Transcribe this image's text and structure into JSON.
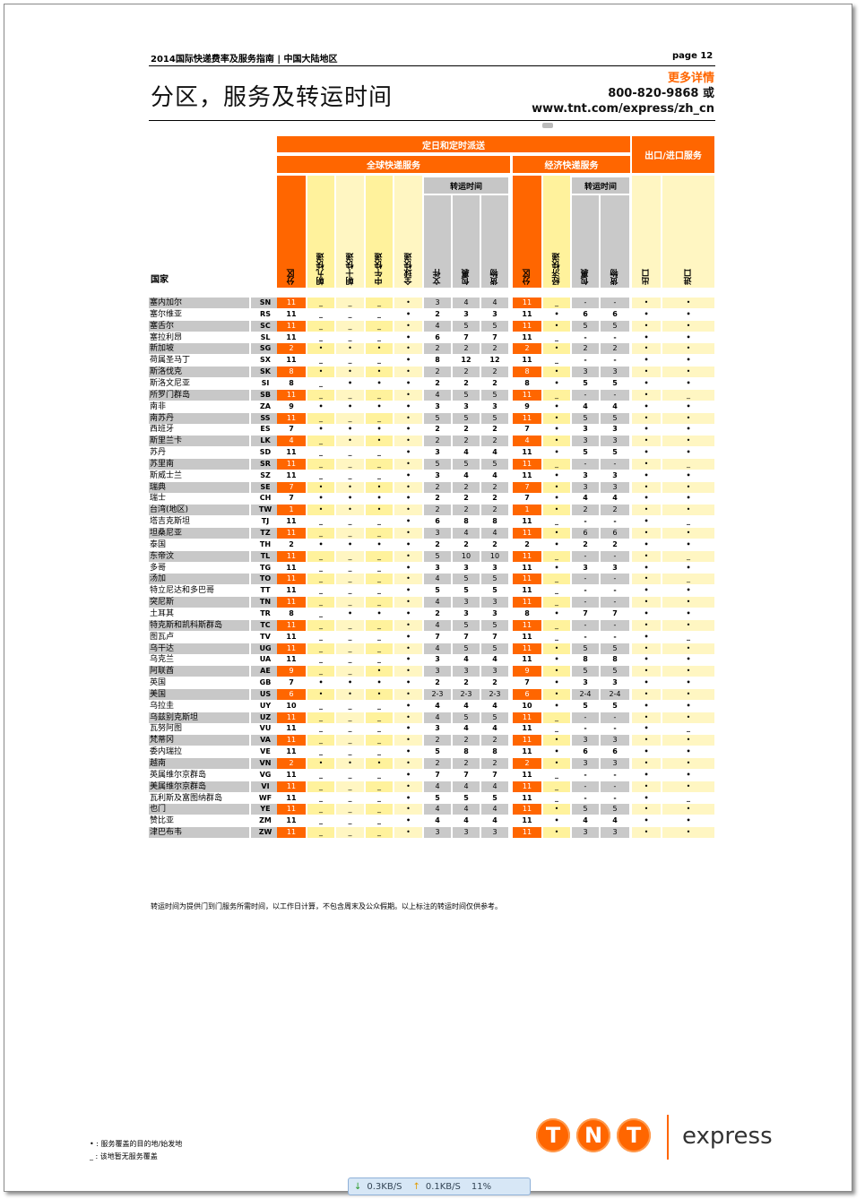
{
  "header": {
    "doc_title": "2014国际快递费率及服务指南 | 中国大陆地区",
    "page": "page 12",
    "title": "分区，服务及转运时间",
    "more_info": "更多详情",
    "phone": "800-820-9868 或",
    "url": "www.tnt.com/express/zh_cn"
  },
  "table": {
    "group_top": "定日和定时派送",
    "group_global": "全球快递服务",
    "group_economy": "经济快递服务",
    "group_export": "出口/进口服务",
    "transit_label": "转运时间",
    "country_header": "国家",
    "columns": [
      "分区",
      "朝九快递",
      "朝十快递",
      "中午快递",
      "全球快递",
      "文件",
      "包裹",
      "货物",
      "分区",
      "经济快递",
      "包裹",
      "货物",
      "出口",
      "进口"
    ],
    "rows": [
      {
        "name": "塞内加尔",
        "code": "SN",
        "v": [
          "11",
          "_",
          "_",
          "_",
          "•",
          "3",
          "4",
          "4",
          "11",
          "_",
          "-",
          "-",
          "•",
          "•"
        ]
      },
      {
        "name": "塞尔维亚",
        "code": "RS",
        "v": [
          "11",
          "_",
          "_",
          "_",
          "•",
          "2",
          "3",
          "3",
          "11",
          "•",
          "6",
          "6",
          "•",
          "•"
        ]
      },
      {
        "name": "塞舌尔",
        "code": "SC",
        "v": [
          "11",
          "_",
          "_",
          "_",
          "•",
          "4",
          "5",
          "5",
          "11",
          "•",
          "5",
          "5",
          "•",
          "•"
        ]
      },
      {
        "name": "塞拉利昂",
        "code": "SL",
        "v": [
          "11",
          "_",
          "_",
          "_",
          "•",
          "6",
          "7",
          "7",
          "11",
          "_",
          "-",
          "-",
          "•",
          "•"
        ]
      },
      {
        "name": "新加坡",
        "code": "SG",
        "v": [
          "2",
          "•",
          "•",
          "•",
          "•",
          "2",
          "2",
          "2",
          "2",
          "•",
          "2",
          "2",
          "•",
          "•"
        ]
      },
      {
        "name": "荷属圣马丁",
        "code": "SX",
        "v": [
          "11",
          "_",
          "_",
          "_",
          "•",
          "8",
          "12",
          "12",
          "11",
          "_",
          "-",
          "-",
          "•",
          "•"
        ]
      },
      {
        "name": "斯洛伐克",
        "code": "SK",
        "v": [
          "8",
          "•",
          "•",
          "•",
          "•",
          "2",
          "2",
          "2",
          "8",
          "•",
          "3",
          "3",
          "•",
          "•"
        ]
      },
      {
        "name": "斯洛文尼亚",
        "code": "SI",
        "v": [
          "8",
          "_",
          "•",
          "•",
          "•",
          "2",
          "2",
          "2",
          "8",
          "•",
          "5",
          "5",
          "•",
          "•"
        ]
      },
      {
        "name": "所罗门群岛",
        "code": "SB",
        "v": [
          "11",
          "_",
          "_",
          "_",
          "•",
          "4",
          "5",
          "5",
          "11",
          "_",
          "-",
          "-",
          "•",
          "_"
        ]
      },
      {
        "name": "南非",
        "code": "ZA",
        "v": [
          "9",
          "•",
          "•",
          "•",
          "•",
          "3",
          "3",
          "3",
          "9",
          "•",
          "4",
          "4",
          "•",
          "•"
        ]
      },
      {
        "name": "南苏丹",
        "code": "SS",
        "v": [
          "11",
          "_",
          "_",
          "_",
          "•",
          "5",
          "5",
          "5",
          "11",
          "•",
          "5",
          "5",
          "•",
          "•"
        ]
      },
      {
        "name": "西班牙",
        "code": "ES",
        "v": [
          "7",
          "•",
          "•",
          "•",
          "•",
          "2",
          "2",
          "2",
          "7",
          "•",
          "3",
          "3",
          "•",
          "•"
        ]
      },
      {
        "name": "斯里兰卡",
        "code": "LK",
        "v": [
          "4",
          "_",
          "•",
          "•",
          "•",
          "2",
          "2",
          "2",
          "4",
          "•",
          "3",
          "3",
          "•",
          "•"
        ]
      },
      {
        "name": "苏丹",
        "code": "SD",
        "v": [
          "11",
          "_",
          "_",
          "_",
          "•",
          "3",
          "4",
          "4",
          "11",
          "•",
          "5",
          "5",
          "•",
          "•"
        ]
      },
      {
        "name": "苏里南",
        "code": "SR",
        "v": [
          "11",
          "_",
          "_",
          "_",
          "•",
          "5",
          "5",
          "5",
          "11",
          "_",
          "-",
          "-",
          "•",
          "_"
        ]
      },
      {
        "name": "斯威士兰",
        "code": "SZ",
        "v": [
          "11",
          "_",
          "_",
          "_",
          "•",
          "3",
          "4",
          "4",
          "11",
          "•",
          "3",
          "3",
          "•",
          "•"
        ]
      },
      {
        "name": "瑞典",
        "code": "SE",
        "v": [
          "7",
          "•",
          "•",
          "•",
          "•",
          "2",
          "2",
          "2",
          "7",
          "•",
          "3",
          "3",
          "•",
          "•"
        ]
      },
      {
        "name": "瑞士",
        "code": "CH",
        "v": [
          "7",
          "•",
          "•",
          "•",
          "•",
          "2",
          "2",
          "2",
          "7",
          "•",
          "4",
          "4",
          "•",
          "•"
        ]
      },
      {
        "name": "台湾(地区)",
        "code": "TW",
        "v": [
          "1",
          "•",
          "•",
          "•",
          "•",
          "2",
          "2",
          "2",
          "1",
          "•",
          "2",
          "2",
          "•",
          "•"
        ]
      },
      {
        "name": "塔吉克斯坦",
        "code": "TJ",
        "v": [
          "11",
          "_",
          "_",
          "_",
          "•",
          "6",
          "8",
          "8",
          "11",
          "_",
          "-",
          "-",
          "•",
          "_"
        ]
      },
      {
        "name": "坦桑尼亚",
        "code": "TZ",
        "v": [
          "11",
          "_",
          "_",
          "_",
          "•",
          "3",
          "4",
          "4",
          "11",
          "•",
          "6",
          "6",
          "•",
          "•"
        ]
      },
      {
        "name": "泰国",
        "code": "TH",
        "v": [
          "2",
          "•",
          "•",
          "•",
          "•",
          "2",
          "2",
          "2",
          "2",
          "•",
          "2",
          "2",
          "•",
          "•"
        ]
      },
      {
        "name": "东帝汶",
        "code": "TL",
        "v": [
          "11",
          "_",
          "_",
          "_",
          "•",
          "5",
          "10",
          "10",
          "11",
          "_",
          "-",
          "-",
          "•",
          "_"
        ]
      },
      {
        "name": "多哥",
        "code": "TG",
        "v": [
          "11",
          "_",
          "_",
          "_",
          "•",
          "3",
          "3",
          "3",
          "11",
          "•",
          "3",
          "3",
          "•",
          "•"
        ]
      },
      {
        "name": "汤加",
        "code": "TO",
        "v": [
          "11",
          "_",
          "_",
          "_",
          "•",
          "4",
          "5",
          "5",
          "11",
          "_",
          "-",
          "-",
          "•",
          "_"
        ]
      },
      {
        "name": "特立尼达和多巴哥",
        "code": "TT",
        "v": [
          "11",
          "_",
          "_",
          "_",
          "•",
          "5",
          "5",
          "5",
          "11",
          "_",
          "-",
          "-",
          "•",
          "•"
        ]
      },
      {
        "name": "突尼斯",
        "code": "TN",
        "v": [
          "11",
          "_",
          "_",
          "_",
          "•",
          "4",
          "3",
          "3",
          "11",
          "_",
          "-",
          "-",
          "•",
          "•"
        ]
      },
      {
        "name": "土耳其",
        "code": "TR",
        "v": [
          "8",
          "_",
          "•",
          "•",
          "•",
          "2",
          "3",
          "3",
          "8",
          "•",
          "7",
          "7",
          "•",
          "•"
        ]
      },
      {
        "name": "特克斯和凯科斯群岛",
        "code": "TC",
        "v": [
          "11",
          "_",
          "_",
          "_",
          "•",
          "4",
          "5",
          "5",
          "11",
          "_",
          "-",
          "-",
          "•",
          "•"
        ]
      },
      {
        "name": "图瓦卢",
        "code": "TV",
        "v": [
          "11",
          "_",
          "_",
          "_",
          "•",
          "7",
          "7",
          "7",
          "11",
          "_",
          "-",
          "-",
          "•",
          "_"
        ]
      },
      {
        "name": "乌干达",
        "code": "UG",
        "v": [
          "11",
          "_",
          "_",
          "_",
          "•",
          "4",
          "5",
          "5",
          "11",
          "•",
          "5",
          "5",
          "•",
          "•"
        ]
      },
      {
        "name": "乌克兰",
        "code": "UA",
        "v": [
          "11",
          "_",
          "_",
          "_",
          "•",
          "3",
          "4",
          "4",
          "11",
          "•",
          "8",
          "8",
          "•",
          "•"
        ]
      },
      {
        "name": "阿联酋",
        "code": "AE",
        "v": [
          "9",
          "_",
          "_",
          "•",
          "•",
          "3",
          "3",
          "3",
          "9",
          "•",
          "5",
          "5",
          "•",
          "•"
        ]
      },
      {
        "name": "英国",
        "code": "GB",
        "v": [
          "7",
          "•",
          "•",
          "•",
          "•",
          "2",
          "2",
          "2",
          "7",
          "•",
          "3",
          "3",
          "•",
          "•"
        ]
      },
      {
        "name": "美国",
        "code": "US",
        "v": [
          "6",
          "•",
          "•",
          "•",
          "•",
          "2-3",
          "2-3",
          "2-3",
          "6",
          "•",
          "2-4",
          "2-4",
          "•",
          "•"
        ]
      },
      {
        "name": "乌拉圭",
        "code": "UY",
        "v": [
          "10",
          "_",
          "_",
          "_",
          "•",
          "4",
          "4",
          "4",
          "10",
          "•",
          "5",
          "5",
          "•",
          "•"
        ]
      },
      {
        "name": "乌兹别克斯坦",
        "code": "UZ",
        "v": [
          "11",
          "_",
          "_",
          "_",
          "•",
          "4",
          "5",
          "5",
          "11",
          "_",
          "-",
          "-",
          "•",
          "•"
        ]
      },
      {
        "name": "瓦努阿图",
        "code": "VU",
        "v": [
          "11",
          "_",
          "_",
          "_",
          "•",
          "3",
          "4",
          "4",
          "11",
          "_",
          "-",
          "-",
          "•",
          "_"
        ]
      },
      {
        "name": "梵蒂冈",
        "code": "VA",
        "v": [
          "11",
          "_",
          "_",
          "_",
          "•",
          "2",
          "2",
          "2",
          "11",
          "•",
          "3",
          "3",
          "•",
          "•"
        ]
      },
      {
        "name": "委内瑞拉",
        "code": "VE",
        "v": [
          "11",
          "_",
          "_",
          "_",
          "•",
          "5",
          "8",
          "8",
          "11",
          "•",
          "6",
          "6",
          "•",
          "•"
        ]
      },
      {
        "name": "越南",
        "code": "VN",
        "v": [
          "2",
          "•",
          "•",
          "•",
          "•",
          "2",
          "2",
          "2",
          "2",
          "•",
          "3",
          "3",
          "•",
          "•"
        ]
      },
      {
        "name": "英属维尔京群岛",
        "code": "VG",
        "v": [
          "11",
          "_",
          "_",
          "_",
          "•",
          "7",
          "7",
          "7",
          "11",
          "_",
          "-",
          "-",
          "•",
          "•"
        ]
      },
      {
        "name": "美属维尔京群岛",
        "code": "VI",
        "v": [
          "11",
          "_",
          "_",
          "_",
          "•",
          "4",
          "4",
          "4",
          "11",
          "_",
          "-",
          "-",
          "•",
          "•"
        ]
      },
      {
        "name": "瓦利斯及富图纳群岛",
        "code": "WF",
        "v": [
          "11",
          "_",
          "_",
          "_",
          "•",
          "5",
          "5",
          "5",
          "11",
          "_",
          "-",
          "-",
          "•",
          "_"
        ]
      },
      {
        "name": "也门",
        "code": "YE",
        "v": [
          "11",
          "_",
          "_",
          "_",
          "•",
          "4",
          "4",
          "4",
          "11",
          "•",
          "5",
          "5",
          "•",
          "•"
        ]
      },
      {
        "name": "赞比亚",
        "code": "ZM",
        "v": [
          "11",
          "_",
          "_",
          "_",
          "•",
          "4",
          "4",
          "4",
          "11",
          "•",
          "4",
          "4",
          "•",
          "•"
        ]
      },
      {
        "name": "津巴布韦",
        "code": "ZW",
        "v": [
          "11",
          "_",
          "_",
          "_",
          "•",
          "3",
          "3",
          "3",
          "11",
          "•",
          "3",
          "3",
          "•",
          "•"
        ]
      }
    ]
  },
  "footnote": "转运时间为提供门到门服务所需时间，以工作日计算，不包含周末及公众假期。以上标注的转运时间仅供参考。",
  "legend": [
    "• : 服务覆盖的目的地/始发地",
    "_ : 该地暂无服务覆盖"
  ],
  "logo": {
    "letters": [
      "T",
      "N",
      "T"
    ],
    "word": "express"
  },
  "statusbar": {
    "down": "0.3KB/S",
    "up": "0.1KB/S",
    "pct": "11%"
  }
}
